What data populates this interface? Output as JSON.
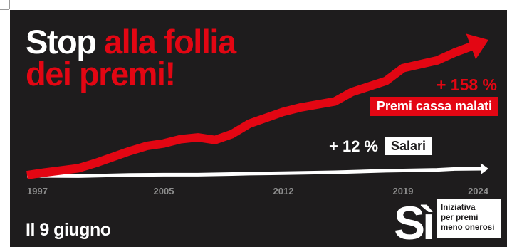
{
  "headline": {
    "part1": "Stop ",
    "part2": "alla follia",
    "part3": "dei premi!"
  },
  "date_label": "Il 9 giugno",
  "logo": {
    "mark": "Sì",
    "text": "Iniziativa\nper premi\nmeno onerosi"
  },
  "colors": {
    "background": "#1e1c1d",
    "accent": "#e30613",
    "white": "#ffffff",
    "tick": "#8d8d8d"
  },
  "chart_data": {
    "type": "line",
    "x_ticks": [
      "1997",
      "2005",
      "2012",
      "2019",
      "2024"
    ],
    "xlim": [
      1997,
      2024
    ],
    "series": [
      {
        "name": "Premi cassa malati",
        "change_label": "+ 158 %",
        "color": "#e30613",
        "x": [
          1997,
          1998,
          2000,
          2001,
          2003,
          2004,
          2005,
          2006,
          2007,
          2008,
          2009,
          2010,
          2012,
          2013,
          2015,
          2016,
          2018,
          2019,
          2021,
          2022,
          2024
        ],
        "y": [
          100,
          103,
          108,
          114,
          128,
          134,
          137,
          142,
          144,
          141,
          148,
          160,
          174,
          179,
          186,
          197,
          210,
          225,
          234,
          243,
          258
        ]
      },
      {
        "name": "Salari",
        "change_label": "+ 12 %",
        "color": "#ffffff",
        "x": [
          1997,
          2000,
          2003,
          2005,
          2007,
          2009,
          2010,
          2012,
          2015,
          2018,
          2019,
          2021,
          2022,
          2024
        ],
        "y": [
          100,
          99.5,
          101.5,
          102,
          102,
          103,
          103.8,
          104.5,
          106,
          108.5,
          109,
          110,
          111.5,
          112
        ]
      }
    ]
  }
}
